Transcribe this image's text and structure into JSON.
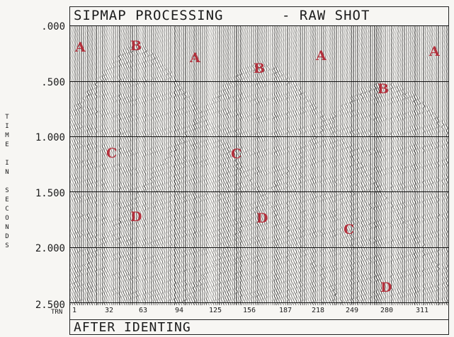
{
  "header": {
    "title": "SIPMAP PROCESSING",
    "subtitle": "- RAW SHOT"
  },
  "footer": {
    "label": "AFTER IDENTING"
  },
  "axis": {
    "title": [
      "T",
      "I",
      "M",
      "E",
      "",
      "I",
      "N",
      "",
      "S",
      "E",
      "C",
      "O",
      "N",
      "D",
      "S"
    ],
    "time_labels": [
      ".000",
      ".500",
      "1.000",
      "1.500",
      "2.000",
      "2.500"
    ],
    "trace_label": "TRN",
    "trace_numbers": [
      "1",
      "32",
      "63",
      "94",
      "125",
      "156",
      "187",
      "218",
      "249",
      "280",
      "311"
    ]
  },
  "zones": [
    "A",
    "B",
    "A",
    "B",
    "A",
    "B",
    "A",
    "C",
    "C",
    "D",
    "D",
    "C",
    "D"
  ],
  "colors": {
    "trace": "#1e1e1e",
    "annotation": "#b2222f",
    "paper": "#f7f6f3"
  }
}
